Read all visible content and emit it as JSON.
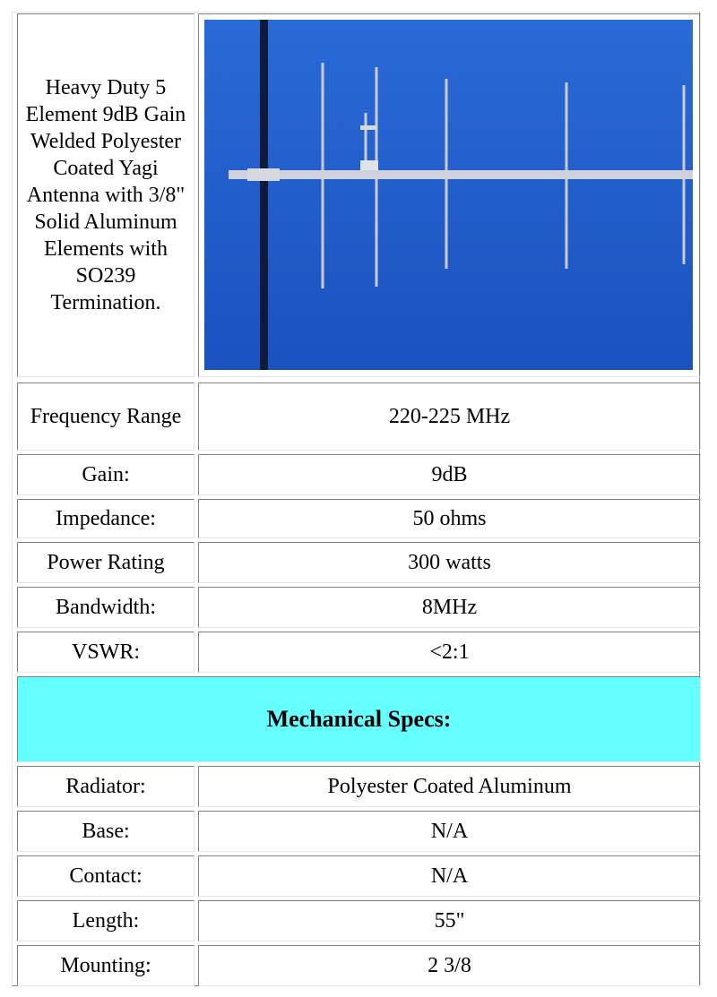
{
  "description": "Heavy Duty 5 Element 9dB Gain Welded Polyester Coated Yagi Antenna with 3/8\" Solid Aluminum Elements with SO239 Termination.",
  "specs": [
    {
      "label": "Frequency Range",
      "value": "220-225 MHz"
    },
    {
      "label": "Gain:",
      "value": "9dB"
    },
    {
      "label": "Impedance:",
      "value": "50 ohms"
    },
    {
      "label": "Power Rating",
      "value": "300 watts"
    },
    {
      "label": "Bandwidth:",
      "value": "8MHz"
    },
    {
      "label": "VSWR:",
      "value": "<2:1"
    }
  ],
  "mechanical": {
    "title": "Mechanical Specs:",
    "rows": [
      {
        "label": "Radiator:",
        "value": "Polyester Coated Aluminum"
      },
      {
        "label": "Base:",
        "value": "N/A"
      },
      {
        "label": "Contact:",
        "value": "N/A"
      },
      {
        "label": "Length:",
        "value": "55\""
      },
      {
        "label": "Mounting:",
        "value": "2 3/8"
      }
    ]
  }
}
